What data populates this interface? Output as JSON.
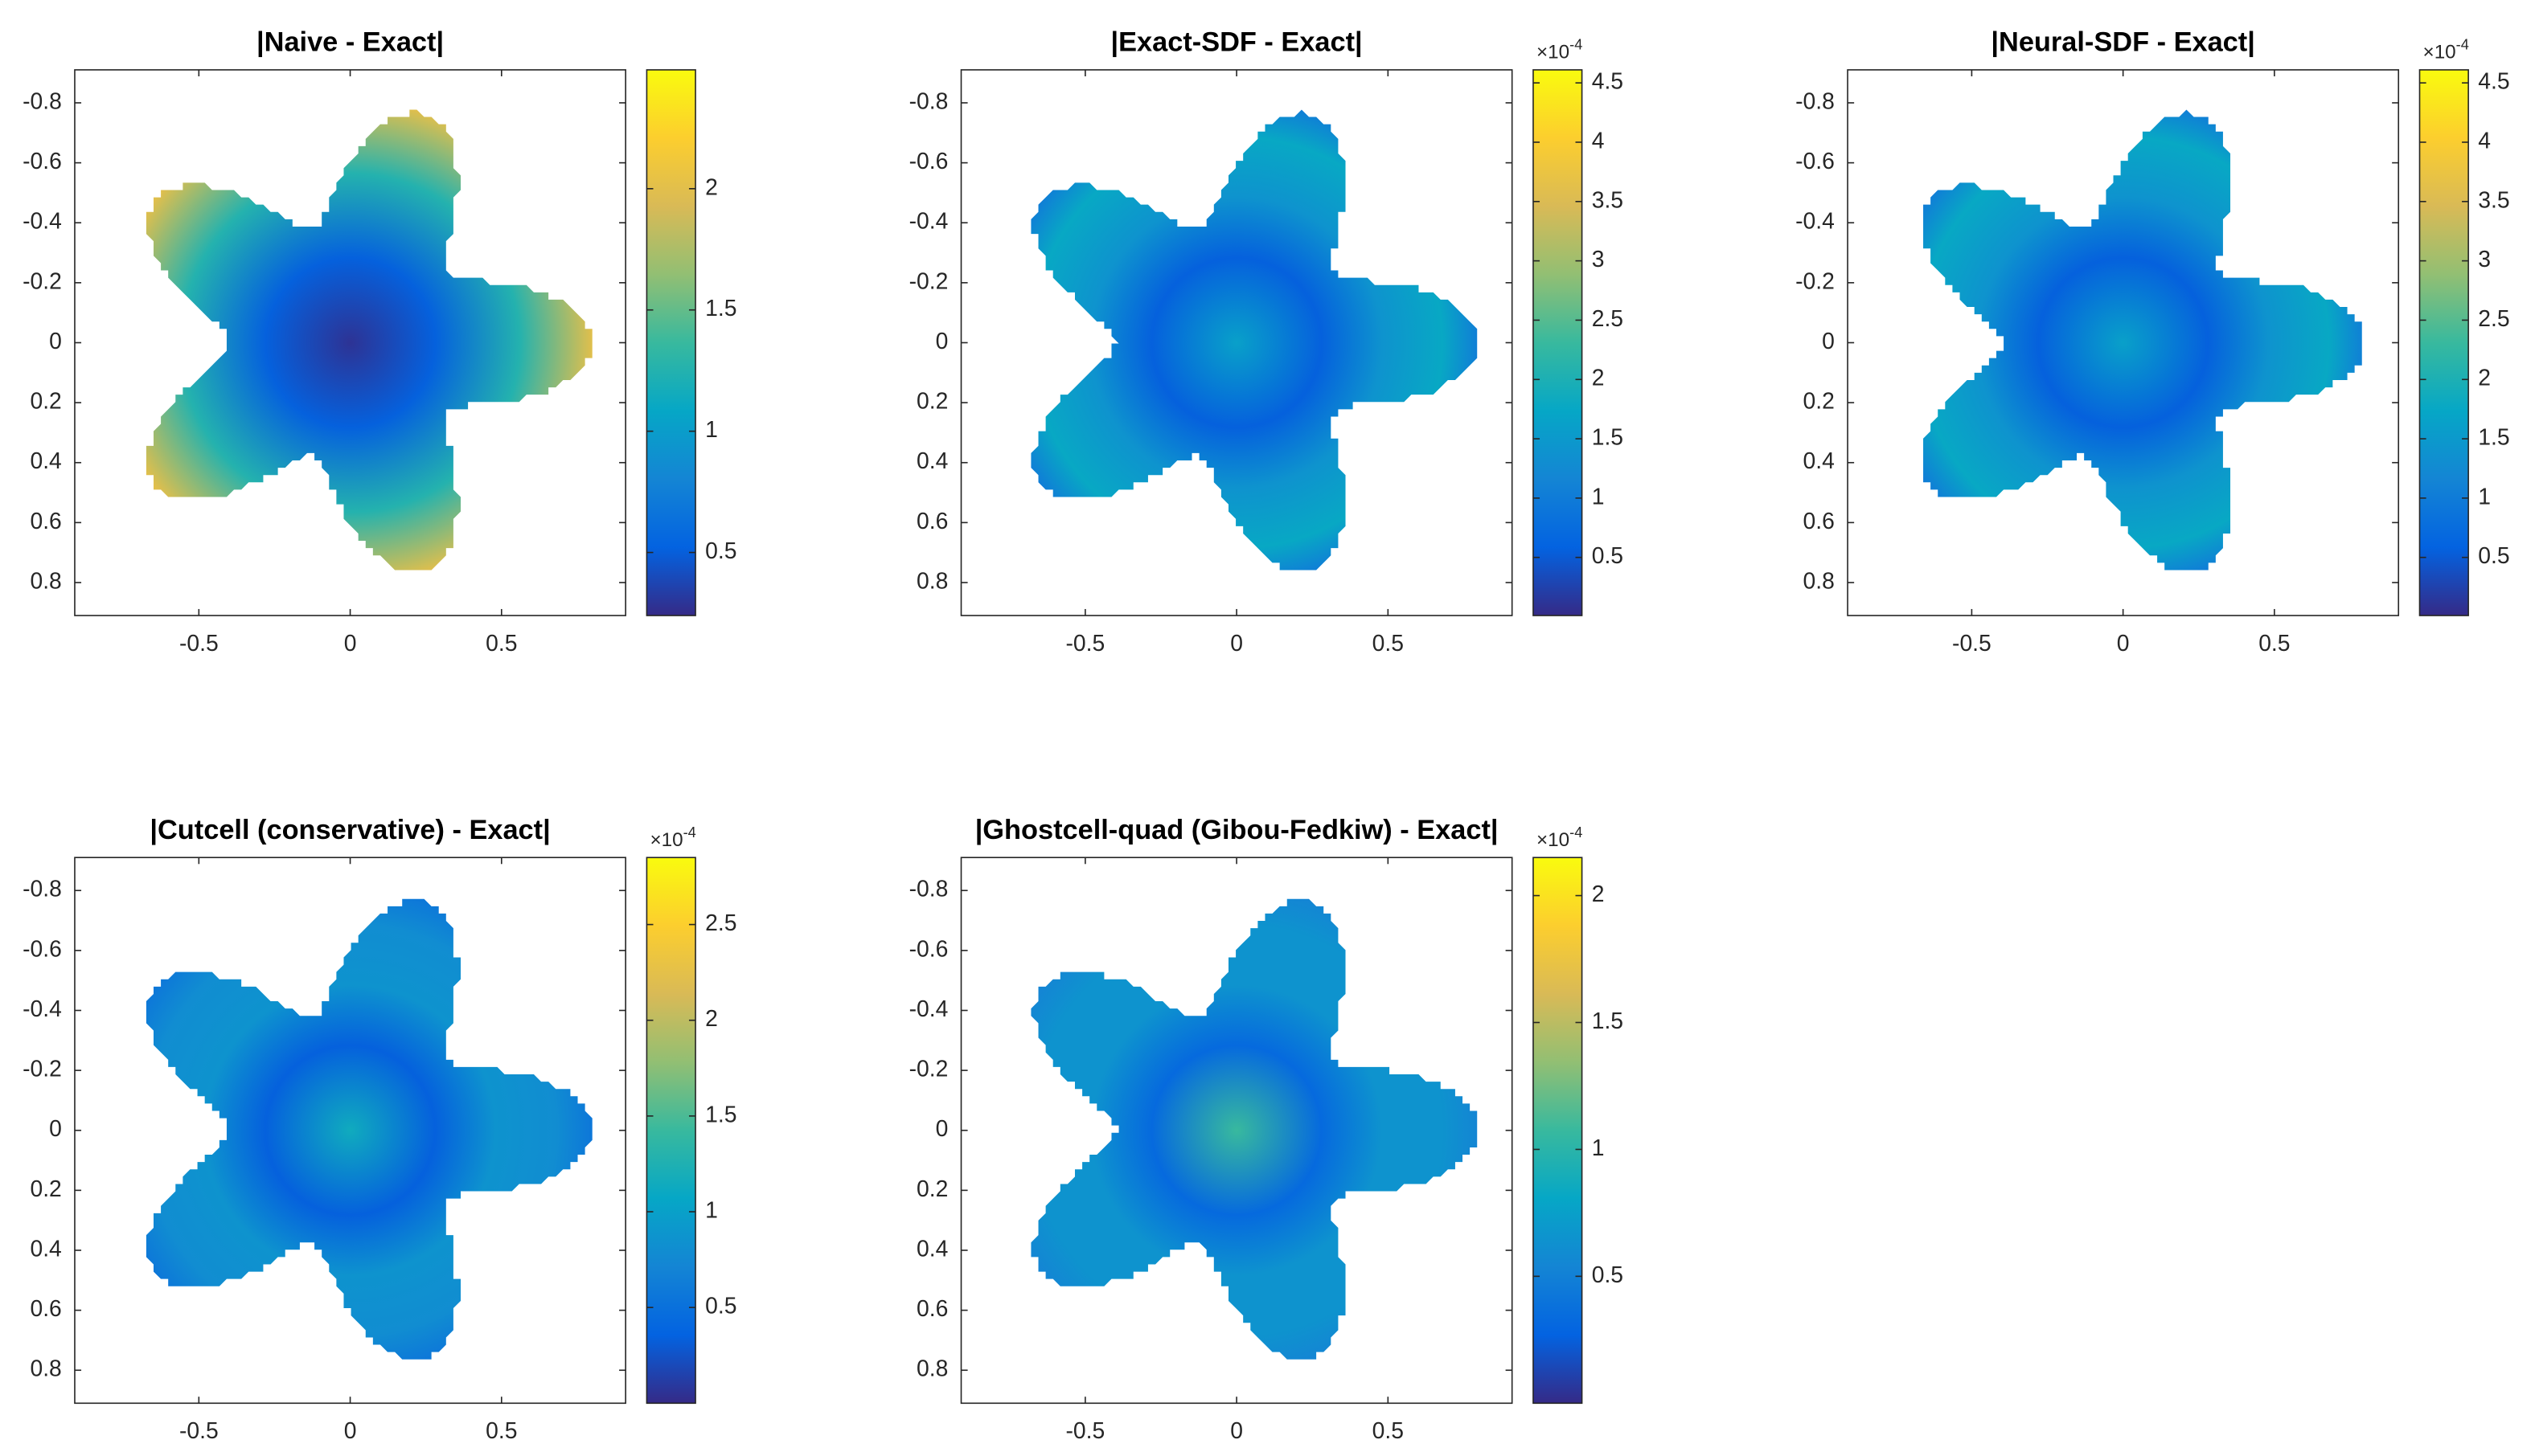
{
  "chart_data": [
    {
      "type": "heatmap",
      "title": "|Naive - Exact|",
      "xlim": [
        -0.91,
        0.91
      ],
      "ylim": [
        -0.91,
        0.91
      ],
      "y_direction": "reverse",
      "xticks": [
        -0.5,
        0,
        0.5
      ],
      "yticks": [
        -0.8,
        -0.6,
        -0.4,
        -0.2,
        0,
        0.2,
        0.4,
        0.6,
        0.8
      ],
      "colormap": "parula",
      "clim": [
        0.24,
        2.49
      ],
      "colorbar_ticks": [
        0.5,
        1,
        1.5,
        2
      ]
    },
    {
      "type": "heatmap",
      "title": "|Exact-SDF - Exact|",
      "xlim": [
        -0.91,
        0.91
      ],
      "ylim": [
        -0.91,
        0.91
      ],
      "y_direction": "reverse",
      "xticks": [
        -0.5,
        0,
        0.5
      ],
      "yticks": [
        -0.8,
        -0.6,
        -0.4,
        -0.2,
        0,
        0.2,
        0.4,
        0.6,
        0.8
      ],
      "colormap": "parula",
      "clim": [
        0.01,
        4.61
      ],
      "colorbar_ticks": [
        0.5,
        1,
        1.5,
        2,
        2.5,
        3,
        3.5,
        4,
        4.5
      ],
      "colorbar_multiplier": {
        "base": "×10",
        "exponent": "-4"
      }
    },
    {
      "type": "heatmap",
      "title": "|Neural-SDF - Exact|",
      "xlim": [
        -0.91,
        0.91
      ],
      "ylim": [
        -0.91,
        0.91
      ],
      "y_direction": "reverse",
      "xticks": [
        -0.5,
        0,
        0.5
      ],
      "yticks": [
        -0.8,
        -0.6,
        -0.4,
        -0.2,
        0,
        0.2,
        0.4,
        0.6,
        0.8
      ],
      "colormap": "parula",
      "clim": [
        0.01,
        4.61
      ],
      "colorbar_ticks": [
        0.5,
        1,
        1.5,
        2,
        2.5,
        3,
        3.5,
        4,
        4.5
      ],
      "colorbar_multiplier": {
        "base": "×10",
        "exponent": "-4"
      }
    },
    {
      "type": "heatmap",
      "title": "|Cutcell (conservative) - Exact|",
      "xlim": [
        -0.91,
        0.91
      ],
      "ylim": [
        -0.91,
        0.91
      ],
      "y_direction": "reverse",
      "xticks": [
        -0.5,
        0,
        0.5
      ],
      "yticks": [
        -0.8,
        -0.6,
        -0.4,
        -0.2,
        0,
        0.2,
        0.4,
        0.6,
        0.8
      ],
      "colormap": "parula",
      "clim": [
        0.0,
        2.85
      ],
      "colorbar_ticks": [
        0.5,
        1,
        1.5,
        2,
        2.5
      ],
      "colorbar_multiplier": {
        "base": "×10",
        "exponent": "-4"
      }
    },
    {
      "type": "heatmap",
      "title": "|Ghostcell-quad (Gibou-Fedkiw) - Exact|",
      "xlim": [
        -0.91,
        0.91
      ],
      "ylim": [
        -0.91,
        0.91
      ],
      "y_direction": "reverse",
      "xticks": [
        -0.5,
        0,
        0.5
      ],
      "yticks": [
        -0.8,
        -0.6,
        -0.4,
        -0.2,
        0,
        0.2,
        0.4,
        0.6,
        0.8
      ],
      "colormap": "parula",
      "clim": [
        0.0,
        2.15
      ],
      "colorbar_ticks": [
        0.5,
        1,
        1.5,
        2
      ],
      "colorbar_multiplier": {
        "base": "×10",
        "exponent": "-4"
      }
    }
  ]
}
